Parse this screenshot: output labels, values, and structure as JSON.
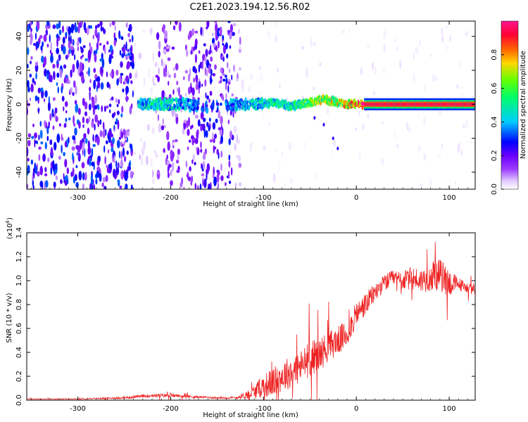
{
  "title": "C2E1.2023.194.12.56.R02",
  "chart_data": [
    {
      "type": "heatmap",
      "xlabel": "Height of straight line (km)",
      "ylabel": "Frequency (Hz)",
      "xlim": [
        -355,
        128
      ],
      "ylim": [
        -50,
        49
      ],
      "xticks": [
        -300,
        -200,
        -100,
        0,
        100
      ],
      "yticks": [
        -40,
        -20,
        0,
        20,
        40
      ],
      "colorbar": {
        "label": "Normalized spectral amplitude",
        "range": [
          0,
          1
        ],
        "ticks": [
          "0.0",
          "0.2",
          "0.4",
          "0.6",
          "0.8"
        ],
        "colors": [
          "#ffffff",
          "#e0c8ff",
          "#9b3cff",
          "#6a00ff",
          "#0000ff",
          "#00ccff",
          "#00ff66",
          "#66ff00",
          "#ffd700",
          "#ff6600",
          "#ff0033",
          "#ff1493"
        ]
      },
      "regions": [
        {
          "x": [
            -355,
            -240
          ],
          "level": 0.25,
          "description_only_for_render": ""
        },
        {
          "x": [
            -240,
            -215
          ],
          "level": 0.05
        },
        {
          "x": [
            -215,
            -175
          ],
          "level": 0.15
        },
        {
          "x": [
            -175,
            -132
          ],
          "level": 0.22
        },
        {
          "x": [
            -132,
            -125
          ],
          "level": 0.08
        },
        {
          "x": [
            -125,
            128
          ],
          "level": 0.02
        }
      ],
      "band": [
        {
          "x": -235,
          "f": 0,
          "amp": 0.45
        },
        {
          "x": -220,
          "f": 0,
          "amp": 0.55
        },
        {
          "x": -200,
          "f": 0,
          "amp": 0.5
        },
        {
          "x": -185,
          "f": 0,
          "amp": 0.45
        },
        {
          "x": -160,
          "f": -2,
          "amp": 0.35
        },
        {
          "x": -130,
          "f": 0,
          "amp": 0.45
        },
        {
          "x": -110,
          "f": 0,
          "amp": 0.5
        },
        {
          "x": -90,
          "f": 1,
          "amp": 0.55
        },
        {
          "x": -70,
          "f": -1,
          "amp": 0.55
        },
        {
          "x": -50,
          "f": 1,
          "amp": 0.65
        },
        {
          "x": -35,
          "f": 3,
          "amp": 0.75
        },
        {
          "x": -20,
          "f": 1,
          "amp": 0.8
        },
        {
          "x": -10,
          "f": 0,
          "amp": 0.85
        },
        {
          "x": 10,
          "f": 0,
          "amp": 1.0
        },
        {
          "x": 60,
          "f": 0,
          "amp": 1.0
        },
        {
          "x": 100,
          "f": 0,
          "amp": 1.0
        },
        {
          "x": 128,
          "f": 0,
          "amp": 1.0
        }
      ],
      "streak": [
        {
          "x": -45,
          "f": -8
        },
        {
          "x": -35,
          "f": -12
        },
        {
          "x": -25,
          "f": -20
        },
        {
          "x": -20,
          "f": -26
        }
      ]
    },
    {
      "type": "line",
      "xlabel": "Height of straight line (km)",
      "ylabel": "SNR (10 * v/v)",
      "multiplier": "(x10",
      "multiplier_exp": "4",
      "xlim": [
        -355,
        128
      ],
      "ylim": [
        0,
        1.4
      ],
      "xticks": [
        -300,
        -200,
        -100,
        0,
        100
      ],
      "yticks": [
        "0.0",
        "0.2",
        "0.4",
        "0.6",
        "0.8",
        "1.0",
        "1.2",
        "1.4"
      ],
      "color": "#ee2222",
      "series": [
        {
          "x": [
            -355,
            -300,
            -250,
            -220,
            -200,
            -180,
            -150,
            -130,
            -120,
            -110,
            -100,
            -90,
            -80,
            -70,
            -60,
            -50,
            -40,
            -30,
            -20,
            -10,
            0,
            10,
            20,
            30,
            40,
            50,
            60,
            70,
            80,
            90,
            100,
            110,
            120,
            128
          ],
          "values": [
            0.01,
            0.01,
            0.02,
            0.04,
            0.04,
            0.03,
            0.02,
            0.02,
            0.04,
            0.07,
            0.12,
            0.15,
            0.2,
            0.24,
            0.28,
            0.35,
            0.38,
            0.45,
            0.5,
            0.55,
            0.72,
            0.8,
            0.9,
            0.98,
            1.02,
            1.0,
            1.02,
            1.0,
            1.03,
            1.05,
            0.98,
            0.97,
            0.94,
            0.92
          ],
          "noise": [
            0.003,
            0.003,
            0.008,
            0.015,
            0.015,
            0.01,
            0.008,
            0.01,
            0.03,
            0.06,
            0.1,
            0.12,
            0.13,
            0.14,
            0.14,
            0.15,
            0.14,
            0.13,
            0.12,
            0.12,
            0.1,
            0.1,
            0.08,
            0.07,
            0.07,
            0.08,
            0.1,
            0.1,
            0.12,
            0.14,
            0.12,
            0.06,
            0.04,
            0.04
          ]
        }
      ]
    }
  ]
}
